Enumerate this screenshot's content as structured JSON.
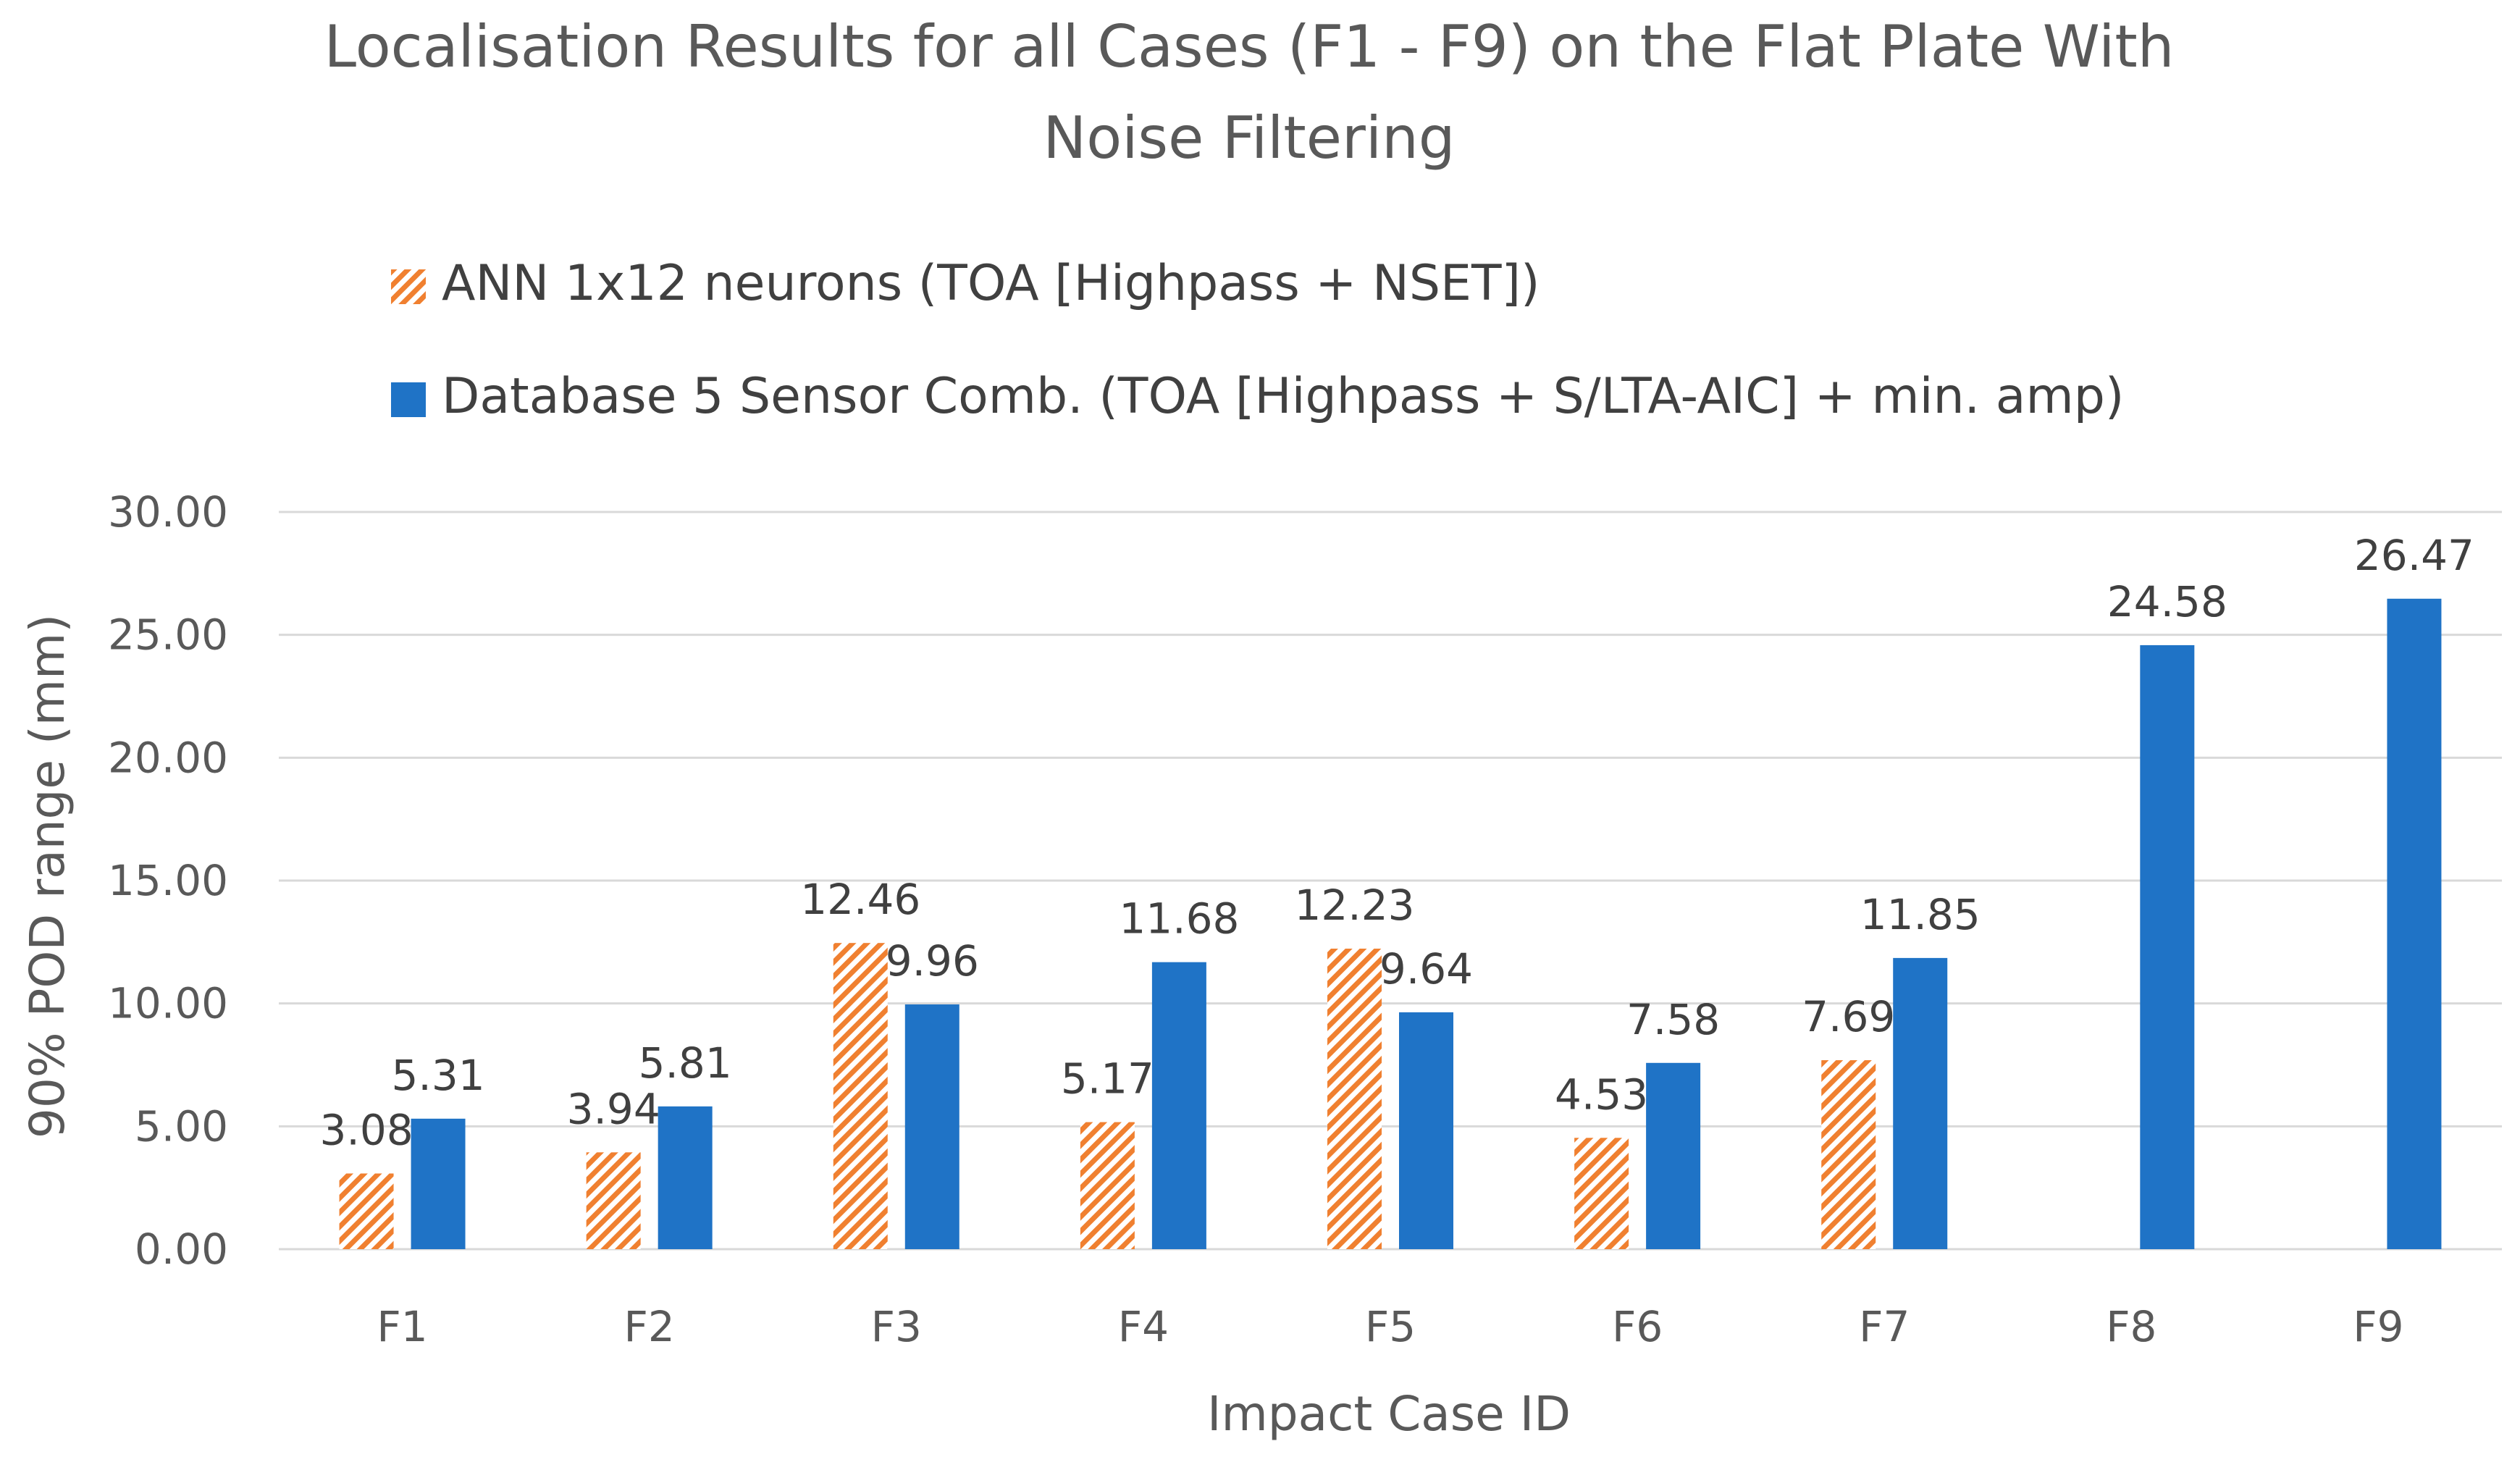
{
  "chart_data": {
    "type": "bar",
    "title_lines": [
      "Localisation Results for all Cases (F1 - F9) on the Flat Plate With",
      "Noise Filtering"
    ],
    "xlabel": "Impact Case ID",
    "ylabel": "90% POD range (mm)",
    "ylim": [
      0,
      30
    ],
    "ytick_values": [
      0,
      5,
      10,
      15,
      20,
      25,
      30
    ],
    "ytick_labels": [
      "0.00",
      "5.00",
      "10.00",
      "15.00",
      "20.00",
      "25.00",
      "30.00"
    ],
    "grid": true,
    "legend_position": "top",
    "categories": [
      "F1",
      "F2",
      "F3",
      "F4",
      "F5",
      "F6",
      "F7",
      "F8",
      "F9"
    ],
    "series": [
      {
        "name": "ANN 1x12 neurons (TOA [Highpass + NSET])",
        "pattern": "orange-diagonal-hatch",
        "color": "#F08030",
        "values": [
          3.08,
          3.94,
          12.46,
          5.17,
          12.23,
          4.53,
          7.69,
          null,
          null
        ],
        "labels": [
          "3.08",
          "3.94",
          "12.46",
          "5.17",
          "12.23",
          "4.53",
          "7.69",
          null,
          null
        ]
      },
      {
        "name": "Database 5 Sensor Comb. (TOA [Highpass + S/LTA-AIC] + min. amp)",
        "pattern": "solid",
        "color": "#1F73C6",
        "values": [
          5.31,
          5.81,
          9.96,
          11.68,
          9.64,
          7.58,
          11.85,
          24.58,
          26.47
        ],
        "labels": [
          "5.31",
          "5.81",
          "9.96",
          "11.68",
          "9.64",
          "7.58",
          "11.85",
          "24.58",
          "26.47"
        ]
      }
    ]
  }
}
